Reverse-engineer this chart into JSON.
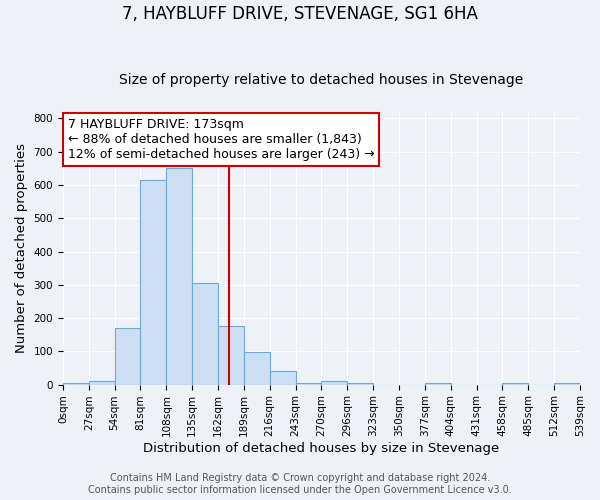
{
  "title": "7, HAYBLUFF DRIVE, STEVENAGE, SG1 6HA",
  "subtitle": "Size of property relative to detached houses in Stevenage",
  "xlabel": "Distribution of detached houses by size in Stevenage",
  "ylabel": "Number of detached properties",
  "bin_edges": [
    0,
    27,
    54,
    81,
    108,
    135,
    162,
    189,
    216,
    243,
    270,
    297,
    324,
    351,
    378,
    405,
    432,
    459,
    486,
    513,
    540
  ],
  "bin_counts": [
    5,
    10,
    170,
    615,
    650,
    305,
    175,
    98,
    40,
    5,
    10,
    5,
    0,
    0,
    5,
    0,
    0,
    5,
    0,
    5
  ],
  "bar_facecolor": "#ccdff5",
  "bar_edgecolor": "#6aaad4",
  "property_line_x": 173,
  "property_line_color": "#cc0000",
  "annotation_line1": "7 HAYBLUFF DRIVE: 173sqm",
  "annotation_line2": "← 88% of detached houses are smaller (1,843)",
  "annotation_line3": "12% of semi-detached houses are larger (243) →",
  "annotation_box_facecolor": "white",
  "annotation_box_edgecolor": "#cc0000",
  "ylim": [
    0,
    820
  ],
  "yticks": [
    0,
    100,
    200,
    300,
    400,
    500,
    600,
    700,
    800
  ],
  "xtick_labels": [
    "0sqm",
    "27sqm",
    "54sqm",
    "81sqm",
    "108sqm",
    "135sqm",
    "162sqm",
    "189sqm",
    "216sqm",
    "243sqm",
    "270sqm",
    "296sqm",
    "323sqm",
    "350sqm",
    "377sqm",
    "404sqm",
    "431sqm",
    "458sqm",
    "485sqm",
    "512sqm",
    "539sqm"
  ],
  "footer_line1": "Contains HM Land Registry data © Crown copyright and database right 2024.",
  "footer_line2": "Contains public sector information licensed under the Open Government Licence v3.0.",
  "background_color": "#eef2f8",
  "grid_color": "white",
  "title_fontsize": 12,
  "subtitle_fontsize": 10,
  "axis_label_fontsize": 9.5,
  "tick_fontsize": 7.5,
  "annotation_fontsize": 9,
  "footer_fontsize": 7
}
